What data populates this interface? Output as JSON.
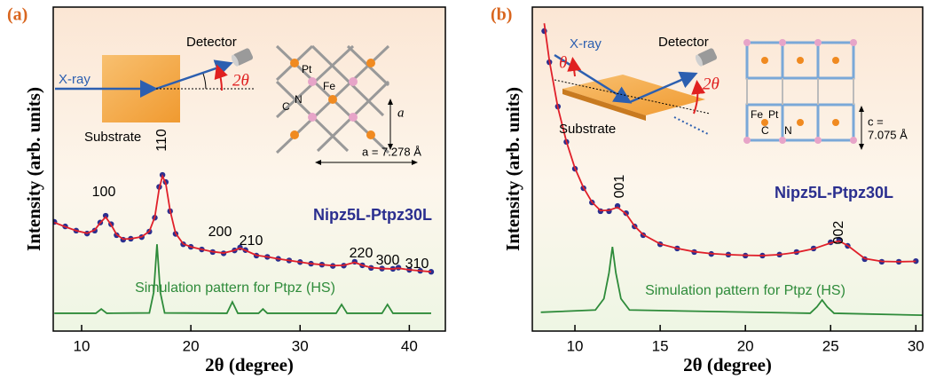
{
  "chart_data": [
    {
      "type": "line",
      "panel_label": "(a)",
      "ylabel": "Intensity (arb. units)",
      "xlabel": "2θ (degree)",
      "xlim": [
        7.4,
        43.3
      ],
      "xticks": [
        10,
        20,
        30,
        40
      ],
      "ylim": [
        0,
        100
      ],
      "peaks": [
        "100",
        "110",
        "200",
        "210",
        "220",
        "300",
        "310"
      ],
      "inset": {
        "beam": "X-ray",
        "detector": "Detector",
        "angle": "2θ",
        "substrate": "Substrate",
        "atoms": [
          "Pt",
          "Fe",
          "C",
          "N"
        ],
        "axis": "a",
        "lattice": "a = 7.278 Å"
      },
      "series": [
        {
          "name": "Nipz5L-Ptpz30L",
          "mode": "markers",
          "color": "#2b2f8f",
          "x": [
            7.5,
            8.5,
            9.5,
            10.5,
            11.2,
            11.7,
            12.2,
            12.7,
            13.2,
            13.8,
            14.5,
            15.5,
            16.2,
            16.7,
            17.1,
            17.4,
            17.7,
            18.1,
            18.6,
            19.3,
            20,
            21,
            22,
            23,
            24,
            24.5,
            25,
            26,
            27,
            28,
            29,
            30,
            31,
            32,
            33,
            34,
            35,
            35.7,
            36.5,
            37.5,
            38.5,
            39,
            40,
            41,
            42
          ],
          "values": [
            33.7,
            32.3,
            31.0,
            30.1,
            31.0,
            33.5,
            35.6,
            33.0,
            29.6,
            28.2,
            28.5,
            29.0,
            30.7,
            35.0,
            44.5,
            48.2,
            46.0,
            37.0,
            30.0,
            26.8,
            26.0,
            25.2,
            24.4,
            24.0,
            24.9,
            25.8,
            25.0,
            23.3,
            22.9,
            22.3,
            21.8,
            21.3,
            20.8,
            20.5,
            20.1,
            20.2,
            21.4,
            20.3,
            19.5,
            19.3,
            19.2,
            19.6,
            18.9,
            18.6,
            18.3
          ]
        },
        {
          "mode": "lines",
          "color": "#e0202a",
          "x": [
            7.5,
            8.5,
            9.5,
            10.5,
            11.2,
            11.7,
            12.2,
            12.7,
            13.2,
            13.8,
            14.5,
            15.5,
            16.2,
            16.7,
            17.1,
            17.4,
            17.7,
            18.1,
            18.6,
            19.3,
            20,
            21,
            22,
            23,
            24,
            24.5,
            25,
            26,
            27,
            28,
            29,
            30,
            31,
            32,
            33,
            34,
            35,
            35.7,
            36.5,
            37.5,
            38.5,
            39,
            40,
            41,
            42
          ],
          "values": [
            33.5,
            32.2,
            31.0,
            30.2,
            31.2,
            33.4,
            35.2,
            32.8,
            29.8,
            28.4,
            28.5,
            29.1,
            30.8,
            35.2,
            44.0,
            47.8,
            45.6,
            37.2,
            30.2,
            26.9,
            26.0,
            25.2,
            24.5,
            24.1,
            24.9,
            25.6,
            24.9,
            23.4,
            22.9,
            22.3,
            21.8,
            21.3,
            20.8,
            20.5,
            20.2,
            20.3,
            21.2,
            20.3,
            19.6,
            19.3,
            19.2,
            19.4,
            18.9,
            18.6,
            18.3
          ]
        },
        {
          "name": "Simulation pattern for Ptpz (HS)",
          "mode": "lines",
          "color": "#2e8b3a",
          "x": [
            7.5,
            11.3,
            11.8,
            12.3,
            16.2,
            16.6,
            16.9,
            17.2,
            17.6,
            23.3,
            23.8,
            24.3,
            26.2,
            26.6,
            27.0,
            33.3,
            33.8,
            34.3,
            37.5,
            38,
            38.5,
            42
          ],
          "values": [
            5.5,
            5.5,
            6.8,
            5.5,
            5.6,
            12,
            26.8,
            12,
            5.6,
            5.5,
            9.0,
            5.5,
            5.5,
            6.8,
            5.5,
            5.5,
            8.2,
            5.5,
            5.5,
            8.2,
            5.5,
            5.5
          ]
        }
      ]
    },
    {
      "type": "line",
      "panel_label": "(b)",
      "ylabel": "Intensity (arb. units)",
      "xlabel": "2θ (degree)",
      "xlim": [
        7.5,
        30.4
      ],
      "xticks": [
        10,
        15,
        20,
        25,
        30
      ],
      "ylim": [
        0,
        100
      ],
      "peaks": [
        "001",
        "002"
      ],
      "inset": {
        "beam": "X-ray",
        "detector": "Detector",
        "incidence": "θ",
        "angle": "2θ",
        "substrate": "Substrate",
        "atoms": [
          "Fe",
          "Pt",
          "C",
          "N"
        ],
        "lattice": [
          "c =",
          "7.075 Å"
        ]
      },
      "series": [
        {
          "name": "Nipz5L-Ptpz30L",
          "mode": "markers",
          "color": "#2b2f8f",
          "x": [
            8.2,
            8.5,
            9,
            9.5,
            10,
            10.5,
            11,
            11.5,
            12,
            12.5,
            13,
            13.5,
            14,
            15,
            16,
            17,
            18,
            19,
            20,
            21,
            22,
            23,
            24,
            25,
            25.5,
            26,
            27,
            28,
            29,
            30
          ],
          "values": [
            92.6,
            83.0,
            69.3,
            58.4,
            50.1,
            44.1,
            39.7,
            37.0,
            37.0,
            38.6,
            36.4,
            32.3,
            29.6,
            26.8,
            25.5,
            24.4,
            23.8,
            23.6,
            23.3,
            23.3,
            23.6,
            24.4,
            25.5,
            27.4,
            28.2,
            26.3,
            22.2,
            21.4,
            21.4,
            21.6
          ]
        },
        {
          "mode": "lines",
          "color": "#e0202a",
          "x": [
            8.2,
            8.5,
            9,
            9.5,
            10,
            10.5,
            11,
            11.5,
            12,
            12.5,
            13,
            13.5,
            14,
            15,
            16,
            17,
            18,
            19,
            20,
            21,
            22,
            23,
            24,
            25,
            25.5,
            26,
            27,
            28,
            29,
            30
          ],
          "values": [
            95.0,
            83.5,
            69.0,
            58.5,
            50.3,
            44.3,
            39.8,
            37.2,
            37.3,
            38.2,
            36.2,
            32.4,
            29.8,
            26.9,
            25.5,
            24.5,
            23.9,
            23.6,
            23.4,
            23.3,
            23.6,
            24.3,
            25.4,
            27.2,
            27.8,
            26.4,
            22.4,
            21.5,
            21.4,
            21.5
          ]
        },
        {
          "name": "Simulation pattern for Ptpz (HS)",
          "mode": "lines",
          "color": "#2e8b3a",
          "x": [
            8.0,
            11.2,
            11.7,
            12.0,
            12.2,
            12.4,
            12.7,
            13.2,
            23.8,
            24.2,
            24.5,
            24.8,
            25.2,
            30.4
          ],
          "values": [
            5.8,
            6.5,
            10,
            18,
            26,
            18,
            10,
            6.5,
            5.5,
            7.5,
            9.6,
            7.5,
            5.5,
            4.9
          ]
        }
      ]
    }
  ]
}
